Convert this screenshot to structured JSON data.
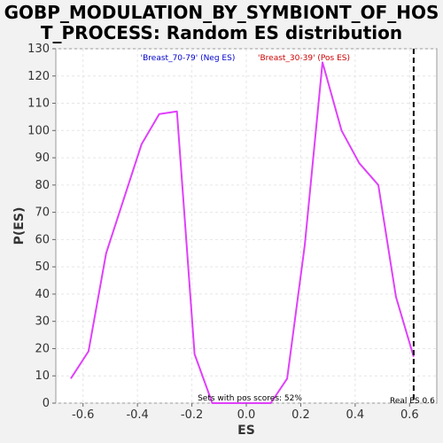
{
  "chart_data": {
    "type": "line",
    "title_line1": "GOBP_MODULATION_BY_SYMBIONT_OF_HOS",
    "title_line2": "T_PROCESS: Random ES distribution",
    "xlabel": "ES",
    "ylabel": "P(ES)",
    "xlim": [
      -0.7,
      0.7
    ],
    "ylim": [
      0,
      130
    ],
    "x_ticks": [
      -0.6,
      -0.4,
      -0.2,
      0.0,
      0.2,
      0.4,
      0.6
    ],
    "x_tick_labels": [
      "-0.6",
      "-0.4",
      "-0.2",
      "0.0",
      "0.2",
      "0.4",
      "0.6"
    ],
    "y_ticks": [
      0,
      10,
      20,
      30,
      40,
      50,
      60,
      70,
      80,
      90,
      100,
      110,
      120,
      130
    ],
    "y_tick_labels": [
      "0",
      "10",
      "20",
      "30",
      "40",
      "50",
      "60",
      "70",
      "80",
      "90",
      "100",
      "110",
      "120",
      "130"
    ],
    "grid": true,
    "legend": {
      "neg_label": "'Breast_70-79' (Neg ES)",
      "pos_label": "'Breast_30-39' (Pos ES)",
      "neg_color": "#0000cc",
      "pos_color": "#cc0000",
      "placement": "top"
    },
    "series": [
      {
        "color": "#e040fb",
        "x": [
          -0.645,
          -0.58,
          -0.515,
          -0.385,
          -0.32,
          -0.255,
          -0.19,
          -0.125,
          0.09,
          0.15,
          0.215,
          0.28,
          0.35,
          0.415,
          0.485,
          0.55,
          0.615
        ],
        "y": [
          9,
          19,
          55,
          95,
          106,
          107,
          18,
          0,
          0,
          9,
          58,
          125,
          100,
          88,
          80,
          39,
          17
        ]
      }
    ],
    "real_es": {
      "x": 0.615,
      "label": "Real ES 0.6"
    },
    "annotation": "Sets with pos scores: 52%"
  }
}
